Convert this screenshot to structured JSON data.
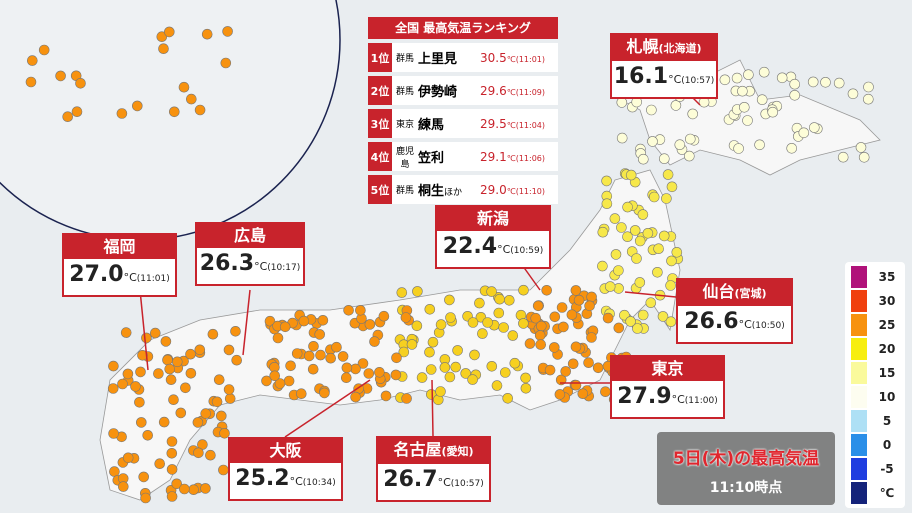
{
  "ranking": {
    "title": "全国 最高気温ランキング",
    "rows": [
      {
        "rank": "1位",
        "pref": "群馬",
        "place": "上里見",
        "suffix": "",
        "temp": "30.5",
        "unit": "℃",
        "time": "(11:01)"
      },
      {
        "rank": "2位",
        "pref": "群馬",
        "place": "伊勢崎",
        "suffix": "",
        "temp": "29.6",
        "unit": "℃",
        "time": "(11:09)"
      },
      {
        "rank": "3位",
        "pref": "東京",
        "place": "練馬",
        "suffix": "",
        "temp": "29.5",
        "unit": "℃",
        "time": "(11:04)"
      },
      {
        "rank": "4位",
        "pref": "鹿児島",
        "place": "笠利",
        "suffix": "",
        "temp": "29.1",
        "unit": "℃",
        "time": "(11:06)"
      },
      {
        "rank": "5位",
        "pref": "群馬",
        "place": "桐生",
        "suffix": "ほか",
        "temp": "29.0",
        "unit": "℃",
        "time": "(11:10)"
      }
    ]
  },
  "callouts": [
    {
      "name": "札幌",
      "sub": "(北海道)",
      "temp": "16.1",
      "unit": "°C",
      "time": "(10:57)"
    },
    {
      "name": "新潟",
      "sub": "",
      "temp": "22.4",
      "unit": "°C",
      "time": "(10:59)"
    },
    {
      "name": "仙台",
      "sub": "(宮城)",
      "temp": "26.6",
      "unit": "°C",
      "time": "(10:50)"
    },
    {
      "name": "東京",
      "sub": "",
      "temp": "27.9",
      "unit": "°C",
      "time": "(11:00)"
    },
    {
      "name": "福岡",
      "sub": "",
      "temp": "27.0",
      "unit": "°C",
      "time": "(11:01)"
    },
    {
      "name": "広島",
      "sub": "",
      "temp": "26.3",
      "unit": "°C",
      "time": "(10:17)"
    },
    {
      "name": "大阪",
      "sub": "",
      "temp": "25.2",
      "unit": "°C",
      "time": "(10:34)"
    },
    {
      "name": "名古屋",
      "sub": "(愛知)",
      "temp": "26.7",
      "unit": "°C",
      "time": "(10:57)"
    }
  ],
  "legend": {
    "items": [
      {
        "value": 35,
        "color": "#b0127a"
      },
      {
        "value": 30,
        "color": "#f0400e"
      },
      {
        "value": 25,
        "color": "#f7920f"
      },
      {
        "value": 20,
        "color": "#f7ee0f"
      },
      {
        "value": 15,
        "color": "#fafa9c"
      },
      {
        "value": 10,
        "color": "#fdfdf0"
      },
      {
        "value": 5,
        "color": "#aee0f5"
      },
      {
        "value": 0,
        "color": "#2a8fe8"
      },
      {
        "value": -5,
        "color": "#1f3ee0"
      }
    ],
    "unit": "℃",
    "unit_color": "#14237a"
  },
  "caption": {
    "title": "5日(木)の最高気温",
    "time": "11:10時点"
  }
}
